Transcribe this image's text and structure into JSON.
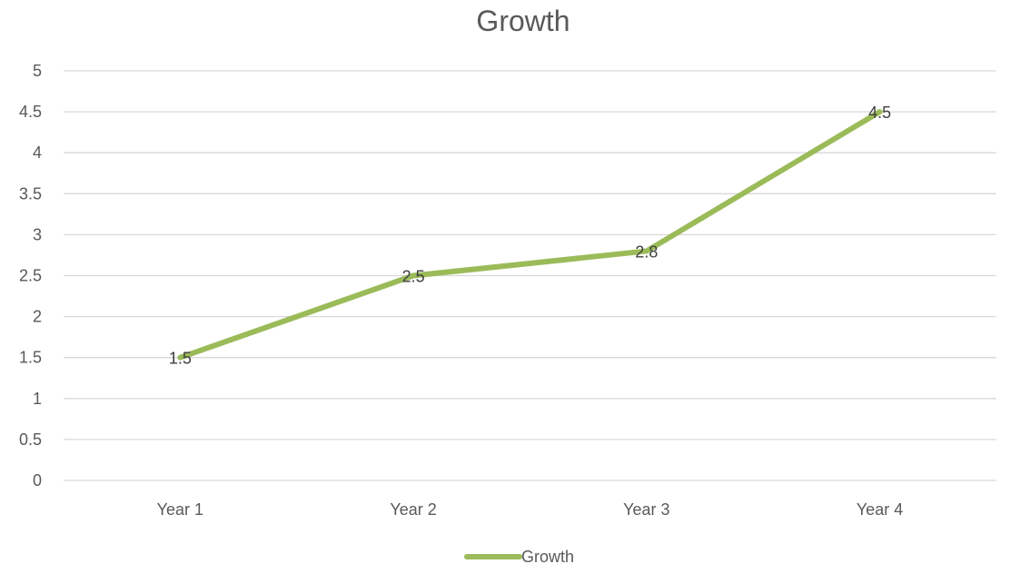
{
  "chart_data": {
    "type": "line",
    "title": "Growth",
    "xlabel": "",
    "ylabel": "",
    "categories": [
      "Year 1",
      "Year 2",
      "Year 3",
      "Year 4"
    ],
    "series": [
      {
        "name": "Growth",
        "values": [
          1.5,
          2.5,
          2.8,
          4.5
        ],
        "color": "#9BBB59",
        "data_labels": [
          "1.5",
          "2.5",
          "2.8",
          "4.5"
        ]
      }
    ],
    "ylim": [
      0,
      5
    ],
    "yticks": [
      0,
      0.5,
      1,
      1.5,
      2,
      2.5,
      3,
      3.5,
      4,
      4.5,
      5
    ],
    "ytick_labels": [
      "0",
      "0.5",
      "1",
      "1.5",
      "2",
      "2.5",
      "3",
      "3.5",
      "4",
      "4.5",
      "5"
    ],
    "grid": true,
    "legend_position": "bottom",
    "colors": {
      "grid": "#d9d9d9",
      "text": "#595959",
      "data_label": "#404040"
    }
  }
}
